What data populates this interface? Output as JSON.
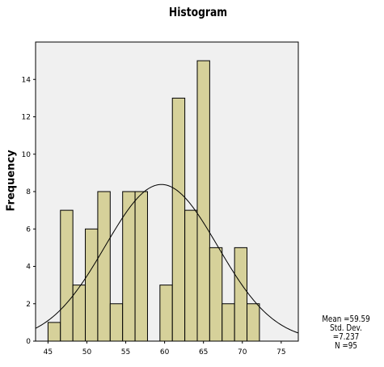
{
  "chart_data": {
    "type": "bar",
    "title": "Histogram",
    "ylabel": "Frequency",
    "xlabel": "",
    "bin_width": 1.6,
    "bins": [
      {
        "start": 45.0,
        "value": 1
      },
      {
        "start": 46.6,
        "value": 7
      },
      {
        "start": 48.2,
        "value": 3
      },
      {
        "start": 49.8,
        "value": 6
      },
      {
        "start": 51.4,
        "value": 8
      },
      {
        "start": 53.0,
        "value": 2
      },
      {
        "start": 54.6,
        "value": 8
      },
      {
        "start": 56.2,
        "value": 8
      },
      {
        "start": 57.8,
        "value": 0
      },
      {
        "start": 59.4,
        "value": 3
      },
      {
        "start": 61.0,
        "value": 13
      },
      {
        "start": 62.6,
        "value": 7
      },
      {
        "start": 64.2,
        "value": 15
      },
      {
        "start": 65.8,
        "value": 5
      },
      {
        "start": 67.4,
        "value": 2
      },
      {
        "start": 69.0,
        "value": 5
      },
      {
        "start": 70.6,
        "value": 2
      }
    ],
    "xlim": [
      43.4,
      77.2
    ],
    "ylim": [
      0,
      16
    ],
    "xticks": [
      45,
      50,
      55,
      60,
      65,
      70,
      75
    ],
    "yticks": [
      0,
      2,
      4,
      6,
      8,
      10,
      12,
      14
    ],
    "normal_curve": {
      "mean": 59.59,
      "std": 7.237,
      "n": 95
    },
    "grid": false,
    "colors": {
      "bar_fill": "#d6d19a",
      "plot_bg": "#f0f0f0",
      "outline": "#000000"
    },
    "stats_text": [
      "Mean =59.59",
      "Std. Dev. =7.237",
      "N =95"
    ]
  }
}
